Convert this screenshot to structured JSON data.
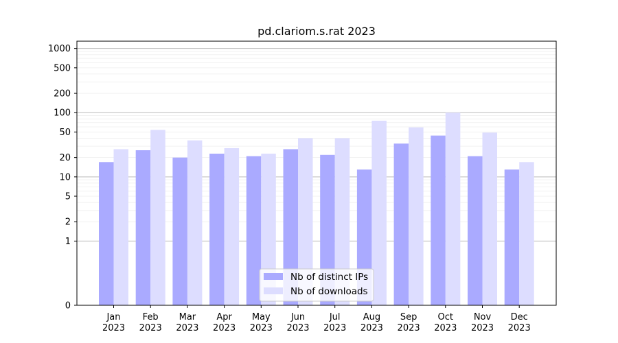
{
  "chart_data": {
    "type": "bar",
    "title": "pd.clariom.s.rat 2023",
    "xlabel": "",
    "ylabel": "",
    "y_scale": "symlog",
    "ylim": [
      0,
      1300
    ],
    "y_ticks": [
      {
        "value": 0,
        "label": "0"
      },
      {
        "value": 1,
        "label": "1"
      },
      {
        "value": 2,
        "label": "2"
      },
      {
        "value": 5,
        "label": "5"
      },
      {
        "value": 10,
        "label": "10"
      },
      {
        "value": 20,
        "label": "20"
      },
      {
        "value": 50,
        "label": "50"
      },
      {
        "value": 100,
        "label": "100"
      },
      {
        "value": 200,
        "label": "200"
      },
      {
        "value": 500,
        "label": "500"
      },
      {
        "value": 1000,
        "label": "1000"
      }
    ],
    "categories": [
      {
        "month": "Jan",
        "year": "2023"
      },
      {
        "month": "Feb",
        "year": "2023"
      },
      {
        "month": "Mar",
        "year": "2023"
      },
      {
        "month": "Apr",
        "year": "2023"
      },
      {
        "month": "May",
        "year": "2023"
      },
      {
        "month": "Jun",
        "year": "2023"
      },
      {
        "month": "Jul",
        "year": "2023"
      },
      {
        "month": "Aug",
        "year": "2023"
      },
      {
        "month": "Sep",
        "year": "2023"
      },
      {
        "month": "Oct",
        "year": "2023"
      },
      {
        "month": "Nov",
        "year": "2023"
      },
      {
        "month": "Dec",
        "year": "2023"
      }
    ],
    "series": [
      {
        "name": "Nb of distinct IPs",
        "color": "#aaaaff",
        "values": [
          17,
          26,
          20,
          23,
          21,
          27,
          22,
          13,
          33,
          44,
          21,
          13
        ]
      },
      {
        "name": "Nb of downloads",
        "color": "#ddddff",
        "values": [
          27,
          54,
          37,
          28,
          23,
          40,
          40,
          75,
          59,
          100,
          49,
          17
        ]
      }
    ],
    "grid": true,
    "legend_position": "lower center"
  }
}
